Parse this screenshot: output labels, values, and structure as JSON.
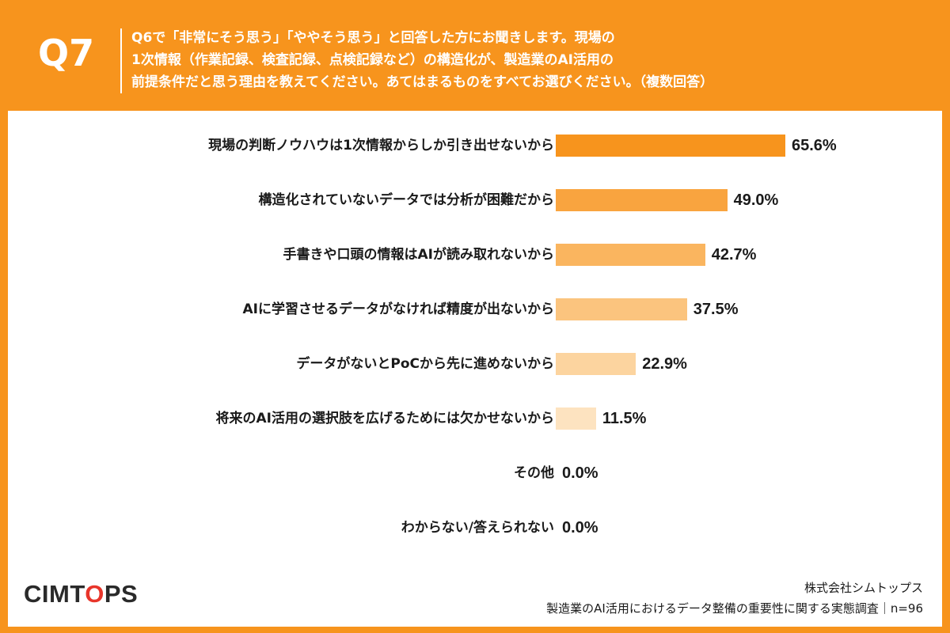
{
  "header": {
    "qnum": "Q7",
    "question_lines": [
      "Q6で「非常にそう思う」「ややそう思う」と回答した方にお聞きします。現場の",
      "1次情報（作業記録、検査記録、点検記録など）の構造化が、製造業のAI活用の",
      "前提条件だと思う理由を教えてください。あてはまるものをすべてお選びください。（複数回答）"
    ]
  },
  "chart_data": {
    "type": "bar",
    "orientation": "horizontal",
    "categories": [
      "現場の判断ノウハウは1次情報からしか引き出せないから",
      "構造化されていないデータでは分析が困難だから",
      "手書きや口頭の情報はAIが読み取れないから",
      "AIに学習させるデータがなければ精度が出ないから",
      "データがないとPoCから先に進めないから",
      "将来のAI活用の選択肢を広げるためには欠かせないから",
      "その他",
      "わからない/答えられない"
    ],
    "values": [
      65.6,
      49.0,
      42.7,
      37.5,
      22.9,
      11.5,
      0.0,
      0.0
    ],
    "value_labels": [
      "65.6%",
      "49.0%",
      "42.7%",
      "37.5%",
      "22.9%",
      "11.5%",
      "0.0%",
      "0.0%"
    ],
    "bar_colors": [
      "#f7941d",
      "#f9a43f",
      "#fab55f",
      "#fbc47e",
      "#fcd49f",
      "#fde3c0",
      "#fdeccf",
      "#fdeccf"
    ],
    "unit": "%",
    "xlim": [
      0,
      100
    ],
    "grid": false,
    "legend": "none"
  },
  "logo": {
    "before": "CIMT",
    "o": "O",
    "after": "PS"
  },
  "footer": {
    "company": "株式会社シムトップス",
    "survey": "製造業のAI活用におけるデータ整備の重要性に関する実態調査｜n=96"
  }
}
